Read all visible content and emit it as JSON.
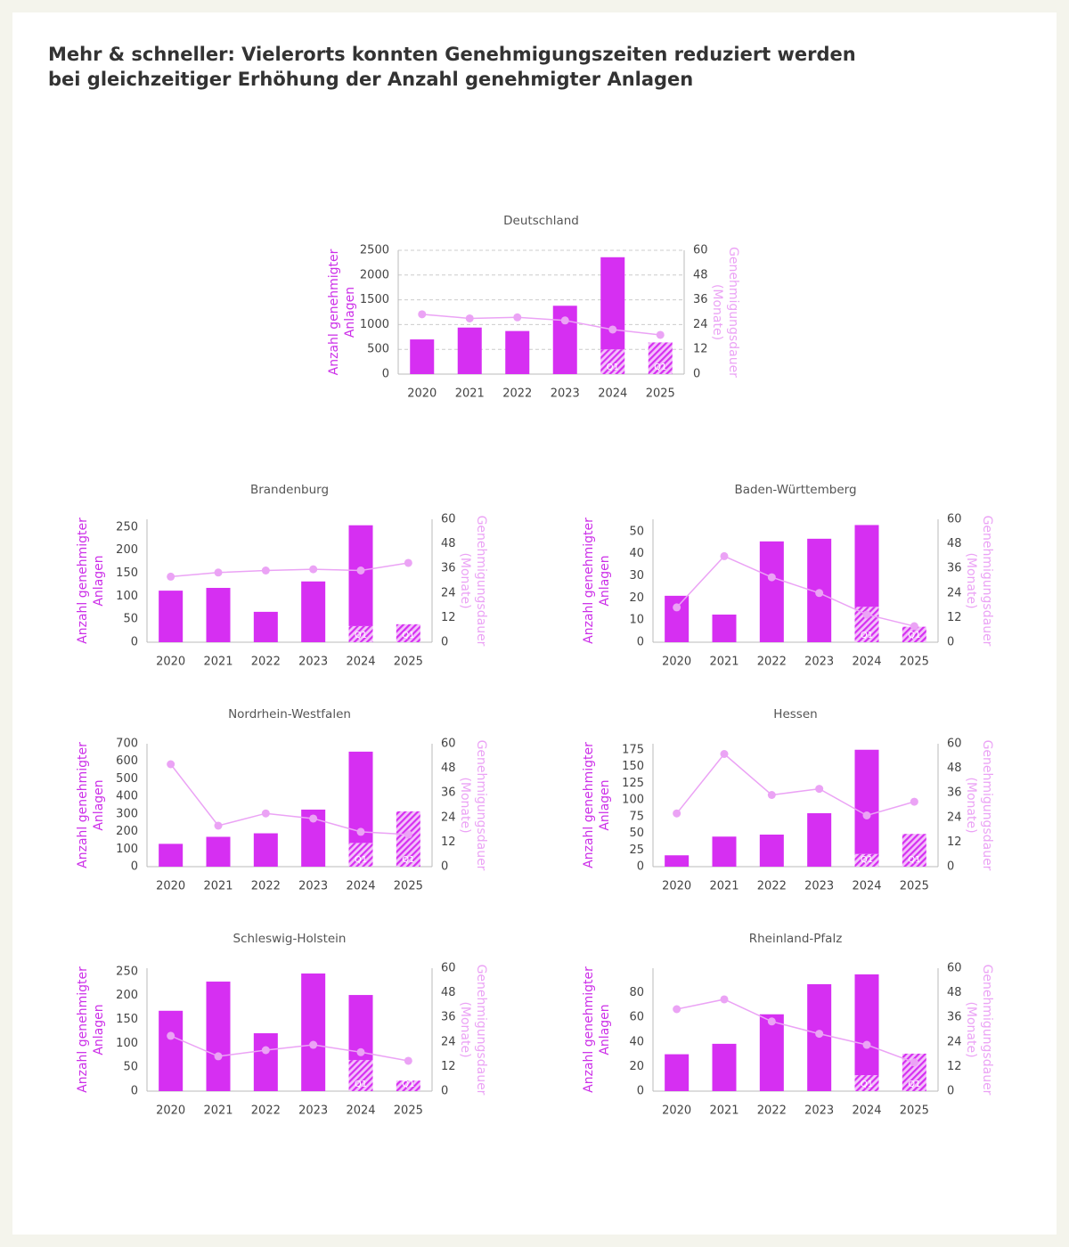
{
  "title": [
    "Mehr & schneller: Vielerorts konnten Genehmigungszeiten reduziert werden",
    "bei gleichzeitiger Erhöhung der Anzahl genehmigter Anlagen"
  ],
  "chart_data": [
    {
      "type": "bar",
      "title": "Deutschland",
      "categories": [
        "2020",
        "2021",
        "2022",
        "2023",
        "2024",
        "2025"
      ],
      "ylabel": [
        "Anzahl genehmigter",
        "Anlagen"
      ],
      "y2label": [
        "Genehmigungsdauer",
        "(Monate)"
      ],
      "ylim": [
        0,
        2500
      ],
      "yticks": [
        0,
        500,
        1000,
        1500,
        2000,
        2500
      ],
      "y2lim": [
        0,
        60
      ],
      "y2ticks": [
        0,
        12,
        24,
        36,
        48,
        60
      ],
      "grid": true,
      "series": [
        {
          "name": "Q1",
          "color": "#d62ff2",
          "pattern": "hatch",
          "values": [
            null,
            null,
            null,
            null,
            500,
            640
          ]
        },
        {
          "color": "#d62ff2",
          "values": [
            700,
            940,
            870,
            1380,
            1860,
            null
          ]
        },
        {
          "type": "line",
          "axis": "y2",
          "color": "#eba3f5",
          "values": [
            29,
            27,
            27.5,
            26,
            21.6,
            19
          ]
        }
      ]
    },
    {
      "type": "bar",
      "title": "Brandenburg",
      "categories": [
        "2020",
        "2021",
        "2022",
        "2023",
        "2024",
        "2025"
      ],
      "ylabel": [
        "Anzahl genehmigter",
        "Anlagen"
      ],
      "y2label": [
        "Genehmigungsdauer",
        "(Monate)"
      ],
      "ylim": [
        0,
        267
      ],
      "yticks": [
        0,
        50,
        100,
        150,
        200,
        250
      ],
      "y2lim": [
        0,
        60
      ],
      "y2ticks": [
        0,
        12,
        24,
        36,
        48,
        60
      ],
      "grid": false,
      "series": [
        {
          "name": "Q1",
          "color": "#d62ff2",
          "pattern": "hatch",
          "values": [
            null,
            null,
            null,
            null,
            35,
            39
          ]
        },
        {
          "color": "#d62ff2",
          "values": [
            112,
            118,
            66,
            132,
            219,
            null
          ]
        },
        {
          "type": "line",
          "axis": "y2",
          "color": "#eba3f5",
          "values": [
            32,
            34,
            35,
            35.6,
            35,
            38.7
          ]
        }
      ]
    },
    {
      "type": "bar",
      "title": "Baden-Württemberg",
      "categories": [
        "2020",
        "2021",
        "2022",
        "2023",
        "2024",
        "2025"
      ],
      "ylabel": [
        "Anzahl genehmigter",
        "Anlagen"
      ],
      "y2label": [
        "Genehmigungsdauer",
        "(Monate)"
      ],
      "ylim": [
        0,
        55.6
      ],
      "yticks": [
        0,
        10,
        20,
        30,
        40,
        50
      ],
      "y2lim": [
        0,
        60
      ],
      "y2ticks": [
        0,
        12,
        24,
        36,
        48,
        60
      ],
      "grid": false,
      "series": [
        {
          "name": "Q1",
          "color": "#d62ff2",
          "pattern": "hatch",
          "values": [
            null,
            null,
            null,
            null,
            16,
            7
          ]
        },
        {
          "color": "#d62ff2",
          "values": [
            21,
            12.5,
            45.6,
            46.8,
            37,
            null
          ]
        },
        {
          "type": "line",
          "axis": "y2",
          "color": "#eba3f5",
          "values": [
            17,
            42,
            31.7,
            24,
            13.5,
            7.8
          ]
        }
      ]
    },
    {
      "type": "bar",
      "title": "Nordrhein-Westfalen",
      "categories": [
        "2020",
        "2021",
        "2022",
        "2023",
        "2024",
        "2025"
      ],
      "ylabel": [
        "Anzahl genehmigter",
        "Anlagen"
      ],
      "y2label": [
        "Genehmigungsdauer",
        "(Monate)"
      ],
      "ylim": [
        0,
        700
      ],
      "yticks": [
        0,
        100,
        200,
        300,
        400,
        500,
        600,
        700
      ],
      "y2lim": [
        0,
        60
      ],
      "y2ticks": [
        0,
        12,
        24,
        36,
        48,
        60
      ],
      "grid": false,
      "series": [
        {
          "name": "Q1",
          "color": "#d62ff2",
          "pattern": "hatch",
          "values": [
            null,
            null,
            null,
            null,
            135,
            315
          ]
        },
        {
          "color": "#d62ff2",
          "values": [
            130,
            170,
            190,
            325,
            520,
            null
          ]
        },
        {
          "type": "line",
          "axis": "y2",
          "color": "#eba3f5",
          "values": [
            50,
            20,
            26,
            23.5,
            17,
            15.7
          ]
        }
      ]
    },
    {
      "type": "bar",
      "title": "Hessen",
      "categories": [
        "2020",
        "2021",
        "2022",
        "2023",
        "2024",
        "2025"
      ],
      "ylabel": [
        "Anzahl genehmigter",
        "Anlagen"
      ],
      "y2label": [
        "Genehmigungsdauer",
        "(Monate)"
      ],
      "ylim": [
        0,
        184
      ],
      "yticks": [
        0,
        25,
        50,
        75,
        100,
        125,
        150,
        175
      ],
      "y2lim": [
        0,
        60
      ],
      "y2ticks": [
        0,
        12,
        24,
        36,
        48,
        60
      ],
      "grid": false,
      "series": [
        {
          "name": "Q1",
          "color": "#d62ff2",
          "pattern": "hatch",
          "values": [
            null,
            null,
            null,
            null,
            19,
            49
          ]
        },
        {
          "color": "#d62ff2",
          "values": [
            17,
            45,
            48,
            80,
            156,
            null
          ]
        },
        {
          "type": "line",
          "axis": "y2",
          "color": "#eba3f5",
          "values": [
            26,
            55,
            35,
            38,
            25,
            31.7
          ]
        }
      ]
    },
    {
      "type": "bar",
      "title": "Schleswig-Holstein",
      "categories": [
        "2020",
        "2021",
        "2022",
        "2023",
        "2024",
        "2025"
      ],
      "ylabel": [
        "Anzahl genehmigter",
        "Anlagen"
      ],
      "y2label": [
        "Genehmigungsdauer",
        "(Monate)"
      ],
      "ylim": [
        0,
        257
      ],
      "yticks": [
        0,
        50,
        100,
        150,
        200,
        250
      ],
      "y2lim": [
        0,
        60
      ],
      "y2ticks": [
        0,
        12,
        24,
        36,
        48,
        60
      ],
      "grid": false,
      "series": [
        {
          "name": "Q1",
          "color": "#d62ff2",
          "pattern": "hatch",
          "values": [
            null,
            null,
            null,
            null,
            65,
            22
          ]
        },
        {
          "color": "#d62ff2",
          "values": [
            168,
            229,
            121,
            246,
            136,
            null
          ]
        },
        {
          "type": "line",
          "axis": "y2",
          "color": "#eba3f5",
          "values": [
            27,
            17,
            20,
            22.6,
            19,
            14.8
          ]
        }
      ]
    },
    {
      "type": "bar",
      "title": "Rheinland-Pfalz",
      "categories": [
        "2020",
        "2021",
        "2022",
        "2023",
        "2024",
        "2025"
      ],
      "ylabel": [
        "Anzahl genehmigter",
        "Anlagen"
      ],
      "y2label": [
        "Genehmigungsdauer",
        "(Monate)"
      ],
      "ylim": [
        0,
        100
      ],
      "yticks": [
        0,
        20,
        40,
        60,
        80
      ],
      "y2lim": [
        0,
        60
      ],
      "y2ticks": [
        0,
        12,
        24,
        36,
        48,
        60
      ],
      "grid": false,
      "series": [
        {
          "name": "Q1",
          "color": "#d62ff2",
          "pattern": "hatch",
          "values": [
            null,
            null,
            null,
            null,
            13,
            30.5
          ]
        },
        {
          "color": "#d62ff2",
          "values": [
            30,
            38.5,
            62.5,
            87,
            82,
            null
          ]
        },
        {
          "type": "line",
          "axis": "y2",
          "color": "#eba3f5",
          "values": [
            40,
            44.8,
            34,
            28,
            22.6,
            14
          ]
        }
      ]
    }
  ]
}
